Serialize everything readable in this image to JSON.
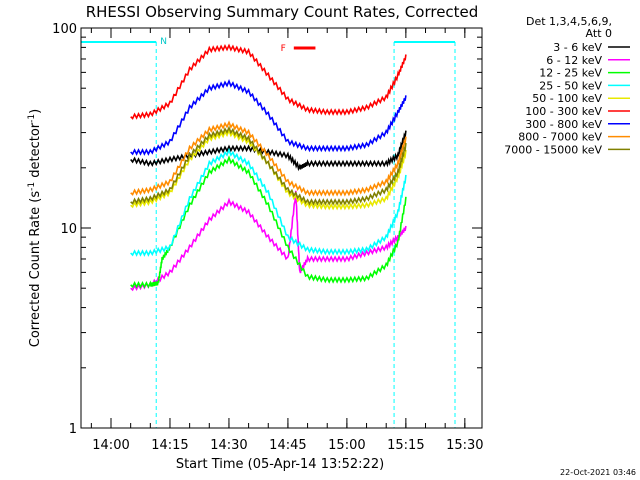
{
  "chart_data": {
    "type": "line",
    "title": "RHESSI Observing Summary Count Rates, Corrected",
    "xlabel": "Start Time (05-Apr-14 13:52:22)",
    "ylabel_parts": [
      "Corrected Count Rate (s",
      "-1",
      " detector",
      "-1",
      ")"
    ],
    "yscale": "log",
    "ylim": [
      1,
      100
    ],
    "xlim_minutes": [
      0,
      102
    ],
    "y_ticks": [
      {
        "v": 1,
        "label": "1"
      },
      {
        "v": 10,
        "label": "10"
      },
      {
        "v": 100,
        "label": "100"
      }
    ],
    "x_ticks": [
      {
        "t": "14:00",
        "label": "14:00"
      },
      {
        "t": "14:15",
        "label": "14:15"
      },
      {
        "t": "14:30",
        "label": "14:30"
      },
      {
        "t": "14:45",
        "label": "14:45"
      },
      {
        "t": "15:00",
        "label": "15:00"
      },
      {
        "t": "15:15",
        "label": "15:15"
      },
      {
        "t": "15:30",
        "label": "15:30"
      }
    ],
    "legend": {
      "position": "top-right",
      "header": [
        "Det 1,3,4,5,6,9,",
        "Att 0"
      ],
      "entries": [
        {
          "label": "3 - 6 keV",
          "color": "#000000"
        },
        {
          "label": "6 - 12 keV",
          "color": "#ff00ff"
        },
        {
          "label": "12 - 25 keV",
          "color": "#00ff00"
        },
        {
          "label": "25 - 50 keV",
          "color": "#00ffff"
        },
        {
          "label": "50 - 100 keV",
          "color": "#e8e800"
        },
        {
          "label": "100 - 300 keV",
          "color": "#ff0000"
        },
        {
          "label": "300 - 800 keV",
          "color": "#0000ff"
        },
        {
          "label": "800 - 7000 keV",
          "color": "#ff8c00"
        },
        {
          "label": "7000 - 15000 keV",
          "color": "#808000"
        }
      ]
    },
    "annotations": {
      "night_label": "N",
      "flare_label": "F",
      "timestamp": "22-Oct-2021 03:46",
      "night_intervals": [
        {
          "start": "13:52:22",
          "end": "14:11:30"
        },
        {
          "start": "15:12:00",
          "end": "15:27:30"
        }
      ],
      "flare_interval": {
        "start": "14:46:30",
        "end": "14:52:00"
      }
    },
    "series": [
      {
        "label": "3 - 6 keV",
        "color": "#000000",
        "points": [
          [
            "14:05",
            22
          ],
          [
            "14:10",
            21
          ],
          [
            "14:15",
            22
          ],
          [
            "14:20",
            23
          ],
          [
            "14:25",
            24
          ],
          [
            "14:30",
            25
          ],
          [
            "14:35",
            25
          ],
          [
            "14:40",
            24
          ],
          [
            "14:45",
            23
          ],
          [
            "14:48",
            20
          ],
          [
            "14:50",
            21
          ],
          [
            "14:55",
            21
          ],
          [
            "15:00",
            21
          ],
          [
            "15:05",
            21
          ],
          [
            "15:10",
            21
          ],
          [
            "15:13",
            23
          ],
          [
            "15:15",
            30
          ]
        ]
      },
      {
        "label": "6 - 12 keV",
        "color": "#ff00ff",
        "points": [
          [
            "14:05",
            5
          ],
          [
            "14:10",
            5.2
          ],
          [
            "14:15",
            6
          ],
          [
            "14:20",
            8
          ],
          [
            "14:25",
            11
          ],
          [
            "14:30",
            13.5
          ],
          [
            "14:35",
            12
          ],
          [
            "14:40",
            9
          ],
          [
            "14:45",
            7
          ],
          [
            "14:47",
            15
          ],
          [
            "14:48",
            6
          ],
          [
            "14:50",
            7
          ],
          [
            "14:55",
            7
          ],
          [
            "15:00",
            7
          ],
          [
            "15:05",
            7.5
          ],
          [
            "15:10",
            8
          ],
          [
            "15:13",
            9
          ],
          [
            "15:15",
            10
          ]
        ]
      },
      {
        "label": "12 - 25 keV",
        "color": "#00ff00",
        "points": [
          [
            "14:05",
            5.2
          ],
          [
            "14:10",
            5.2
          ],
          [
            "14:12",
            5.3
          ],
          [
            "14:13",
            7
          ],
          [
            "14:15",
            8
          ],
          [
            "14:20",
            13
          ],
          [
            "14:25",
            19
          ],
          [
            "14:30",
            22
          ],
          [
            "14:35",
            19
          ],
          [
            "14:40",
            13
          ],
          [
            "14:45",
            8
          ],
          [
            "14:50",
            5.7
          ],
          [
            "14:55",
            5.5
          ],
          [
            "15:00",
            5.5
          ],
          [
            "15:05",
            5.6
          ],
          [
            "15:10",
            6.5
          ],
          [
            "15:13",
            8.5
          ],
          [
            "15:15",
            14
          ]
        ]
      },
      {
        "label": "25 - 50 keV",
        "color": "#00ffff",
        "points": [
          [
            "14:05",
            7.5
          ],
          [
            "14:10",
            7.5
          ],
          [
            "14:15",
            8
          ],
          [
            "14:20",
            14
          ],
          [
            "14:25",
            21
          ],
          [
            "14:30",
            24
          ],
          [
            "14:35",
            21
          ],
          [
            "14:40",
            15
          ],
          [
            "14:45",
            9
          ],
          [
            "14:50",
            7.8
          ],
          [
            "14:55",
            7.6
          ],
          [
            "15:00",
            7.6
          ],
          [
            "15:05",
            7.8
          ],
          [
            "15:10",
            9
          ],
          [
            "15:13",
            12
          ],
          [
            "15:15",
            18
          ]
        ]
      },
      {
        "label": "50 - 100 keV",
        "color": "#e8e800",
        "points": [
          [
            "14:05",
            13
          ],
          [
            "14:10",
            13.5
          ],
          [
            "14:15",
            15
          ],
          [
            "14:20",
            22
          ],
          [
            "14:25",
            28
          ],
          [
            "14:30",
            30
          ],
          [
            "14:35",
            27
          ],
          [
            "14:40",
            21
          ],
          [
            "14:45",
            15
          ],
          [
            "14:50",
            13
          ],
          [
            "14:55",
            12.8
          ],
          [
            "15:00",
            12.8
          ],
          [
            "15:05",
            13
          ],
          [
            "15:10",
            14
          ],
          [
            "15:13",
            18
          ],
          [
            "15:15",
            24
          ]
        ]
      },
      {
        "label": "100 - 300 keV",
        "color": "#ff0000",
        "points": [
          [
            "14:05",
            36
          ],
          [
            "14:10",
            37
          ],
          [
            "14:15",
            42
          ],
          [
            "14:20",
            62
          ],
          [
            "14:25",
            78
          ],
          [
            "14:30",
            80
          ],
          [
            "14:35",
            76
          ],
          [
            "14:40",
            58
          ],
          [
            "14:45",
            44
          ],
          [
            "14:50",
            39
          ],
          [
            "14:55",
            38
          ],
          [
            "15:00",
            38
          ],
          [
            "15:05",
            40
          ],
          [
            "15:10",
            45
          ],
          [
            "15:13",
            58
          ],
          [
            "15:15",
            72
          ]
        ]
      },
      {
        "label": "300 - 800 keV",
        "color": "#0000ff",
        "points": [
          [
            "14:05",
            24
          ],
          [
            "14:10",
            24
          ],
          [
            "14:15",
            27
          ],
          [
            "14:20",
            40
          ],
          [
            "14:25",
            50
          ],
          [
            "14:30",
            53
          ],
          [
            "14:35",
            48
          ],
          [
            "14:40",
            37
          ],
          [
            "14:45",
            27
          ],
          [
            "14:50",
            25
          ],
          [
            "14:55",
            25
          ],
          [
            "15:00",
            25
          ],
          [
            "15:05",
            26
          ],
          [
            "15:10",
            30
          ],
          [
            "15:13",
            38
          ],
          [
            "15:15",
            45
          ]
        ]
      },
      {
        "label": "800 - 7000 keV",
        "color": "#ff8c00",
        "points": [
          [
            "14:05",
            15
          ],
          [
            "14:10",
            15.5
          ],
          [
            "14:15",
            17
          ],
          [
            "14:20",
            25
          ],
          [
            "14:25",
            31
          ],
          [
            "14:30",
            33
          ],
          [
            "14:35",
            30
          ],
          [
            "14:40",
            23
          ],
          [
            "14:45",
            17
          ],
          [
            "14:50",
            15
          ],
          [
            "14:55",
            15
          ],
          [
            "15:00",
            15
          ],
          [
            "15:05",
            15.5
          ],
          [
            "15:10",
            17
          ],
          [
            "15:13",
            21
          ],
          [
            "15:15",
            28
          ]
        ]
      },
      {
        "label": "7000 - 15000 keV",
        "color": "#808000",
        "points": [
          [
            "14:05",
            13.5
          ],
          [
            "14:10",
            14
          ],
          [
            "14:15",
            15.5
          ],
          [
            "14:20",
            23
          ],
          [
            "14:25",
            29
          ],
          [
            "14:30",
            31
          ],
          [
            "14:35",
            28
          ],
          [
            "14:40",
            21
          ],
          [
            "14:45",
            15.5
          ],
          [
            "14:50",
            13.5
          ],
          [
            "14:55",
            13.5
          ],
          [
            "15:00",
            13.5
          ],
          [
            "15:05",
            14
          ],
          [
            "15:10",
            15.5
          ],
          [
            "15:13",
            19
          ],
          [
            "15:15",
            26
          ]
        ]
      }
    ]
  }
}
